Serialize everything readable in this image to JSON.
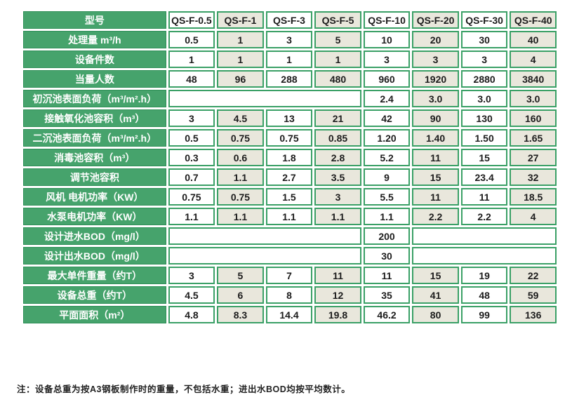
{
  "colors": {
    "label_green": "#46a36c",
    "label_border_green": "#2e8f57",
    "cell_border_green": "#3aa066",
    "cell_beige": "#e9e7dc",
    "cell_white": "#ffffff",
    "data_text": "#1c1c1c",
    "label_text": "#ffffff"
  },
  "table": {
    "header": {
      "label": "型号",
      "models": [
        "QS-F-0.5",
        "QS-F-1",
        "QS-F-3",
        "QS-F-5",
        "QS-F-10",
        "QS-F-20",
        "QS-F-30",
        "QS-F-40"
      ]
    },
    "rows": [
      {
        "label": "处理量 m³/h",
        "values": [
          "0.5",
          "1",
          "3",
          "5",
          "10",
          "20",
          "30",
          "40"
        ]
      },
      {
        "label": "设备件数",
        "values": [
          "1",
          "1",
          "1",
          "1",
          "3",
          "3",
          "3",
          "4"
        ]
      },
      {
        "label": "当量人数",
        "values": [
          "48",
          "96",
          "288",
          "480",
          "960",
          "1920",
          "2880",
          "3840"
        ]
      },
      {
        "label": "初沉池表面负荷（m³/m².h）",
        "blank_left_span": 4,
        "values": [
          "2.4",
          "3.0",
          "3.0",
          "3.0"
        ]
      },
      {
        "label": "接触氧化池容积（m³）",
        "values": [
          "3",
          "4.5",
          "13",
          "21",
          "42",
          "90",
          "130",
          "160"
        ]
      },
      {
        "label": "二沉池表面负荷（m³/m².h）",
        "values": [
          "0.5",
          "0.75",
          "0.75",
          "0.85",
          "1.20",
          "1.40",
          "1.50",
          "1.65"
        ]
      },
      {
        "label": "消毒池容积（m³）",
        "values": [
          "0.3",
          "0.6",
          "1.8",
          "2.8",
          "5.2",
          "11",
          "15",
          "27"
        ]
      },
      {
        "label": "调节池容积",
        "values": [
          "0.7",
          "1.1",
          "2.7",
          "3.5",
          "9",
          "15",
          "23.4",
          "32"
        ]
      },
      {
        "label": "风机 电机功率（KW）",
        "values": [
          "0.75",
          "0.75",
          "1.5",
          "3",
          "5.5",
          "11",
          "11",
          "18.5"
        ]
      },
      {
        "label": "水泵电机功率（KW）",
        "values": [
          "1.1",
          "1.1",
          "1.1",
          "1.1",
          "1.1",
          "2.2",
          "2.2",
          "4"
        ]
      },
      {
        "label": "设计进水BOD（mg/l）",
        "blank_left_span": 4,
        "value": "200",
        "blank_right_span": 3
      },
      {
        "label": "设计出水BOD（mg/l）",
        "blank_left_span": 4,
        "value": "30",
        "blank_right_span": 3
      },
      {
        "label": "最大单件重量（约T）",
        "values": [
          "3",
          "5",
          "7",
          "11",
          "11",
          "15",
          "19",
          "22"
        ]
      },
      {
        "label": "设备总重（约T）",
        "values": [
          "4.5",
          "6",
          "8",
          "12",
          "35",
          "41",
          "48",
          "59"
        ]
      },
      {
        "label": "平面面积（m²）",
        "values": [
          "4.8",
          "8.3",
          "14.4",
          "19.8",
          "46.2",
          "80",
          "99",
          "136"
        ]
      }
    ]
  },
  "note": "注：设备总重为按A3钢板制作时的重量，不包括水重；进出水BOD均按平均数计。"
}
